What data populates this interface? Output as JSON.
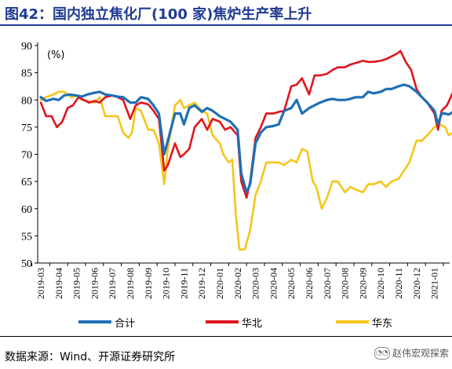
{
  "title": "图42：国内独立焦化厂(100 家)焦炉生产率上升",
  "source": "数据来源：Wind、开源证券研究所",
  "watermark": "赵伟宏观探索",
  "chart_data": {
    "type": "line",
    "title": "",
    "ylabel": "(%)",
    "ylim": [
      50,
      90
    ],
    "yticks": [
      50,
      55,
      60,
      65,
      70,
      75,
      80,
      85,
      90
    ],
    "x_tick_labels": [
      "2019-03",
      "2019-04",
      "2019-05",
      "2019-06",
      "2019-07",
      "2019-08",
      "2019-09",
      "2019-10",
      "2019-11",
      "2019-12",
      "2020-01",
      "2020-02",
      "2020-03",
      "2020-04",
      "2020-05",
      "2020-06",
      "2020-07",
      "2020-08",
      "2020-09",
      "2020-10",
      "2020-11",
      "2020-12",
      "2021-01"
    ],
    "legend_position": "bottom",
    "colors": {
      "合计": "#1f6fb5",
      "华北": "#e0141c",
      "华东": "#f5c518"
    },
    "series": [
      {
        "name": "合计",
        "values": [
          [
            0,
            80.5
          ],
          [
            0.3,
            79.8
          ],
          [
            0.7,
            80.2
          ],
          [
            1,
            80.0
          ],
          [
            1.3,
            80.8
          ],
          [
            1.6,
            81.0
          ],
          [
            2,
            80.8
          ],
          [
            2.3,
            80.6
          ],
          [
            2.6,
            81.0
          ],
          [
            3,
            81.3
          ],
          [
            3.3,
            81.5
          ],
          [
            3.6,
            81.0
          ],
          [
            4,
            80.8
          ],
          [
            4.3,
            80.6
          ],
          [
            4.6,
            80.5
          ],
          [
            5,
            79.5
          ],
          [
            5.3,
            79.5
          ],
          [
            5.6,
            80.5
          ],
          [
            6,
            80.2
          ],
          [
            6.3,
            79.0
          ],
          [
            6.6,
            77.5
          ],
          [
            6.9,
            70.0
          ],
          [
            7.1,
            72.5
          ],
          [
            7.5,
            77.5
          ],
          [
            7.8,
            77.5
          ],
          [
            8,
            75.5
          ],
          [
            8.3,
            78.5
          ],
          [
            8.6,
            79.0
          ],
          [
            9,
            77.8
          ],
          [
            9.3,
            78.5
          ],
          [
            9.6,
            78.0
          ],
          [
            10,
            77.0
          ],
          [
            10.3,
            76.5
          ],
          [
            10.6,
            76.0
          ],
          [
            11,
            74.5
          ],
          [
            11.2,
            66.5
          ],
          [
            11.5,
            63.0
          ],
          [
            11.7,
            64.5
          ],
          [
            12,
            72.0
          ],
          [
            12.3,
            74.0
          ],
          [
            12.6,
            75.0
          ],
          [
            13,
            75.2
          ],
          [
            13.3,
            75.5
          ],
          [
            13.6,
            78.0
          ],
          [
            14,
            78.5
          ],
          [
            14.3,
            80.0
          ],
          [
            14.6,
            77.5
          ],
          [
            15,
            78.5
          ],
          [
            15.3,
            79.0
          ],
          [
            15.6,
            79.5
          ],
          [
            16,
            80.0
          ],
          [
            16.3,
            80.2
          ],
          [
            16.6,
            80.0
          ],
          [
            17,
            80.0
          ],
          [
            17.3,
            80.2
          ],
          [
            17.6,
            80.5
          ],
          [
            18,
            80.5
          ],
          [
            18.3,
            81.5
          ],
          [
            18.6,
            81.2
          ],
          [
            19,
            81.5
          ],
          [
            19.3,
            82.0
          ],
          [
            19.6,
            82.0
          ],
          [
            20,
            82.5
          ],
          [
            20.3,
            82.8
          ],
          [
            20.6,
            82.5
          ],
          [
            21,
            81.5
          ],
          [
            21.3,
            80.5
          ],
          [
            21.6,
            79.5
          ],
          [
            22,
            78.0
          ],
          [
            22.2,
            75.5
          ],
          [
            22.4,
            77.5
          ],
          [
            22.6,
            77.5
          ],
          [
            22.8,
            77.3
          ],
          [
            23.05,
            77.8
          ]
        ]
      },
      {
        "name": "华北",
        "values": [
          [
            0,
            79.5
          ],
          [
            0.3,
            77.0
          ],
          [
            0.6,
            77.0
          ],
          [
            0.9,
            75.0
          ],
          [
            1.2,
            76.0
          ],
          [
            1.5,
            78.5
          ],
          [
            1.8,
            79.0
          ],
          [
            2.1,
            80.5
          ],
          [
            2.4,
            80.0
          ],
          [
            2.7,
            79.5
          ],
          [
            3,
            79.8
          ],
          [
            3.3,
            79.5
          ],
          [
            3.6,
            80.5
          ],
          [
            4,
            80.8
          ],
          [
            4.3,
            80.5
          ],
          [
            4.6,
            80.0
          ],
          [
            5,
            76.5
          ],
          [
            5.3,
            79.0
          ],
          [
            5.6,
            79.5
          ],
          [
            6,
            79.2
          ],
          [
            6.3,
            78.0
          ],
          [
            6.6,
            76.5
          ],
          [
            6.9,
            67.0
          ],
          [
            7.1,
            68.0
          ],
          [
            7.5,
            72.0
          ],
          [
            7.8,
            69.5
          ],
          [
            8,
            70.0
          ],
          [
            8.3,
            71.0
          ],
          [
            8.6,
            75.0
          ],
          [
            9,
            76.5
          ],
          [
            9.3,
            74.5
          ],
          [
            9.6,
            76.5
          ],
          [
            10,
            76.0
          ],
          [
            10.3,
            74.5
          ],
          [
            10.6,
            75.0
          ],
          [
            11,
            73.5
          ],
          [
            11.2,
            65.0
          ],
          [
            11.5,
            62.0
          ],
          [
            11.7,
            65.0
          ],
          [
            12,
            73.0
          ],
          [
            12.3,
            75.0
          ],
          [
            12.6,
            77.5
          ],
          [
            13,
            77.5
          ],
          [
            13.3,
            77.8
          ],
          [
            13.6,
            78.0
          ],
          [
            14,
            82.5
          ],
          [
            14.3,
            82.8
          ],
          [
            14.6,
            84.0
          ],
          [
            15,
            81.0
          ],
          [
            15.3,
            84.5
          ],
          [
            15.6,
            84.5
          ],
          [
            16,
            84.8
          ],
          [
            16.3,
            85.5
          ],
          [
            16.6,
            86.0
          ],
          [
            17,
            86.0
          ],
          [
            17.3,
            86.5
          ],
          [
            17.6,
            86.8
          ],
          [
            18,
            87.2
          ],
          [
            18.3,
            87.0
          ],
          [
            18.6,
            87.0
          ],
          [
            19,
            87.2
          ],
          [
            19.3,
            87.5
          ],
          [
            19.6,
            88.0
          ],
          [
            19.9,
            88.5
          ],
          [
            20.1,
            89.0
          ],
          [
            20.4,
            87.0
          ],
          [
            20.7,
            85.5
          ],
          [
            21,
            82.0
          ],
          [
            21.3,
            80.5
          ],
          [
            21.6,
            79.5
          ],
          [
            22,
            77.5
          ],
          [
            22.2,
            74.5
          ],
          [
            22.4,
            78.0
          ],
          [
            22.7,
            79.0
          ],
          [
            23.05,
            81.5
          ]
        ]
      },
      {
        "name": "华东",
        "values": [
          [
            0,
            80.0
          ],
          [
            0.3,
            80.5
          ],
          [
            0.7,
            81.0
          ],
          [
            1,
            81.5
          ],
          [
            1.3,
            81.5
          ],
          [
            1.7,
            80.5
          ],
          [
            2,
            80.8
          ],
          [
            2.3,
            80.0
          ],
          [
            2.6,
            79.8
          ],
          [
            3,
            79.5
          ],
          [
            3.3,
            80.5
          ],
          [
            3.6,
            77.0
          ],
          [
            4,
            77.0
          ],
          [
            4.3,
            77.0
          ],
          [
            4.6,
            74.0
          ],
          [
            4.9,
            73.0
          ],
          [
            5.1,
            74.0
          ],
          [
            5.3,
            78.5
          ],
          [
            5.6,
            78.0
          ],
          [
            6,
            74.5
          ],
          [
            6.3,
            74.5
          ],
          [
            6.6,
            72.0
          ],
          [
            6.9,
            64.5
          ],
          [
            7.1,
            71.0
          ],
          [
            7.5,
            79.0
          ],
          [
            7.8,
            80.0
          ],
          [
            8,
            78.5
          ],
          [
            8.3,
            79.0
          ],
          [
            8.6,
            79.5
          ],
          [
            9,
            78.0
          ],
          [
            9.3,
            77.5
          ],
          [
            9.6,
            73.5
          ],
          [
            10,
            72.0
          ],
          [
            10.2,
            70.0
          ],
          [
            10.5,
            68.5
          ],
          [
            10.7,
            69.0
          ],
          [
            10.9,
            59.0
          ],
          [
            11.1,
            52.5
          ],
          [
            11.4,
            52.5
          ],
          [
            11.7,
            56.0
          ],
          [
            12,
            62.5
          ],
          [
            12.3,
            65.0
          ],
          [
            12.6,
            68.5
          ],
          [
            13,
            68.5
          ],
          [
            13.3,
            68.5
          ],
          [
            13.6,
            68.0
          ],
          [
            14,
            69.0
          ],
          [
            14.3,
            68.5
          ],
          [
            14.6,
            71.0
          ],
          [
            14.9,
            70.5
          ],
          [
            15.2,
            65.0
          ],
          [
            15.4,
            64.0
          ],
          [
            15.7,
            60.0
          ],
          [
            16,
            62.0
          ],
          [
            16.3,
            65.0
          ],
          [
            16.6,
            65.0
          ],
          [
            17,
            63.0
          ],
          [
            17.3,
            64.0
          ],
          [
            17.6,
            63.5
          ],
          [
            18,
            63.0
          ],
          [
            18.3,
            64.5
          ],
          [
            18.6,
            64.5
          ],
          [
            19,
            65.0
          ],
          [
            19.3,
            64.0
          ],
          [
            19.6,
            65.0
          ],
          [
            20,
            65.5
          ],
          [
            20.3,
            67.0
          ],
          [
            20.6,
            68.5
          ],
          [
            21,
            72.5
          ],
          [
            21.3,
            72.5
          ],
          [
            21.6,
            73.5
          ],
          [
            22,
            75.0
          ],
          [
            22.3,
            75.5
          ],
          [
            22.6,
            75.0
          ],
          [
            22.8,
            73.5
          ],
          [
            23.05,
            74.0
          ]
        ]
      }
    ]
  }
}
